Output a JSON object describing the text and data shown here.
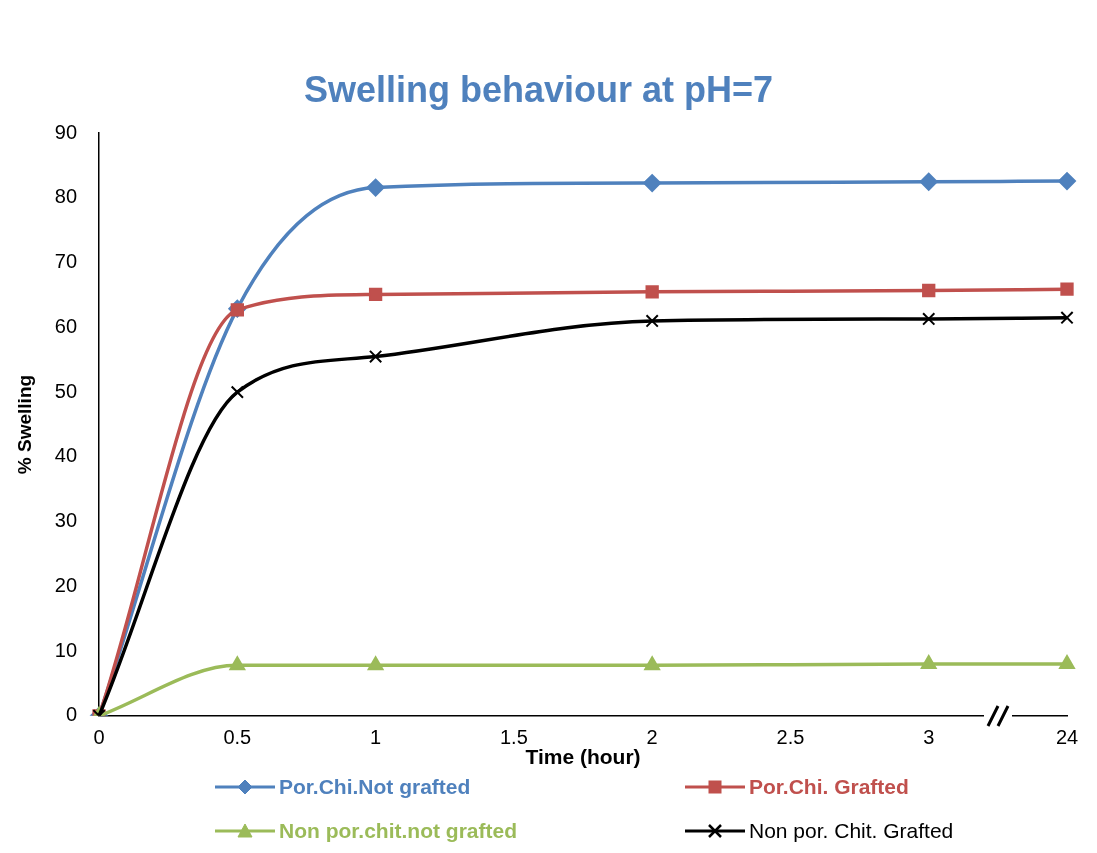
{
  "chart_data": {
    "type": "line",
    "title": "Swelling behaviour at pH=7",
    "xlabel": "Time (hour)",
    "ylabel": "% Swelling",
    "categories": [
      "0",
      "0.5",
      "1",
      "1.5",
      "2",
      "2.5",
      "3",
      "24"
    ],
    "series": [
      {
        "name": "Por.Chi.Not grafted",
        "color": "#4f81bd",
        "marker": "diamond",
        "values": [
          0,
          62.9,
          81.6,
          null,
          82.3,
          null,
          82.5,
          82.6
        ]
      },
      {
        "name": "Por.Chi. Grafted",
        "color": "#c0504d",
        "marker": "square",
        "values": [
          0,
          62.7,
          65.1,
          null,
          65.5,
          null,
          65.7,
          65.9
        ]
      },
      {
        "name": "Non por.chit.not grafted",
        "color": "#9bbb59",
        "marker": "triangle",
        "values": [
          0,
          7.8,
          7.8,
          null,
          7.8,
          null,
          8,
          8
        ]
      },
      {
        "name": "Non por. Chit. Grafted",
        "color": "#000000",
        "marker": "cross",
        "values": [
          0,
          50,
          55.5,
          null,
          61,
          null,
          61.3,
          61.5
        ]
      }
    ],
    "ylim": [
      0,
      90
    ],
    "yticks": [
      0,
      10,
      20,
      30,
      40,
      50,
      60,
      70,
      80,
      90
    ],
    "grid": false,
    "legend": "bottom",
    "line_style": "solid"
  }
}
